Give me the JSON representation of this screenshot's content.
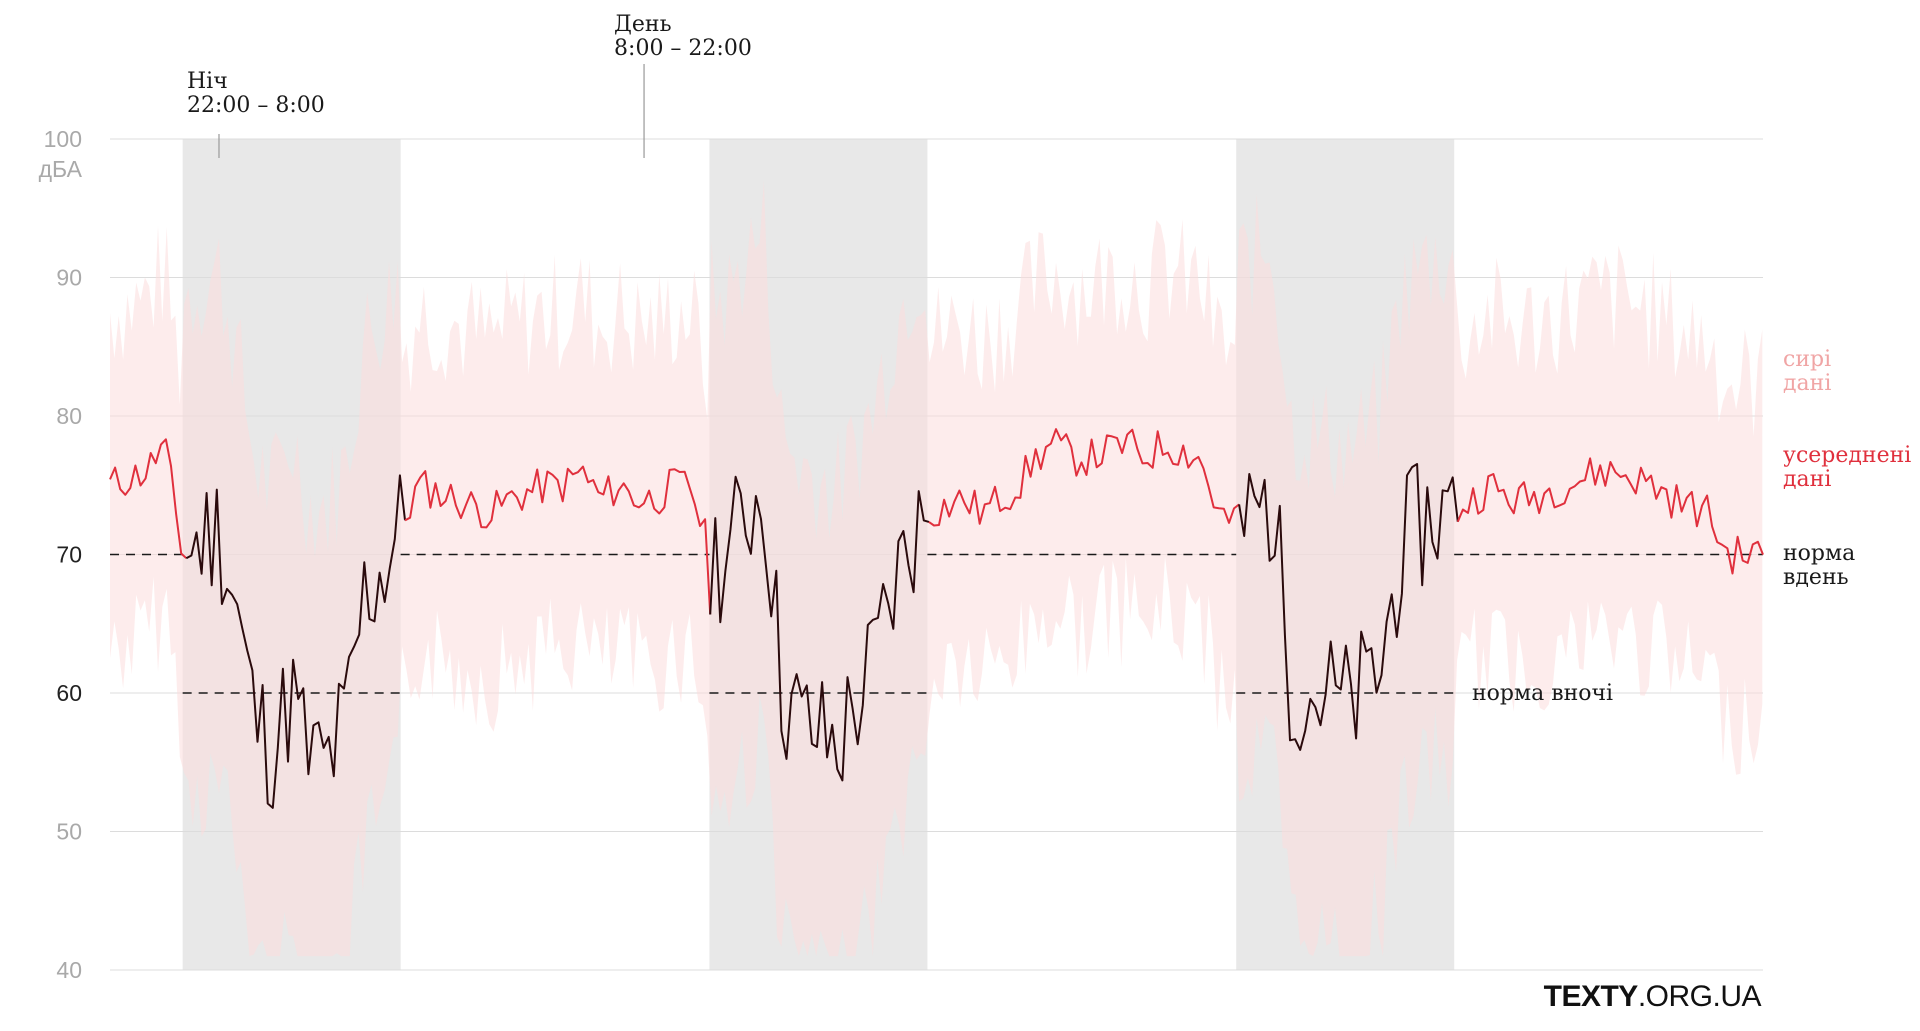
{
  "chart_data": {
    "type": "line",
    "title": "",
    "ylabel": "дБА",
    "ylim": [
      40,
      100
    ],
    "yticks": [
      40,
      50,
      60,
      70,
      80,
      90,
      100
    ],
    "grid": true,
    "colors": {
      "night_band": "#e8e8e8",
      "raw": "#fbdcdc",
      "raw_label": "#f0a5a5",
      "average": "#e0303d",
      "average_night": "#2a0a0c",
      "norm": "#1a1a1a"
    },
    "night_periods": [
      [
        10,
        70
      ],
      [
        155,
        215
      ],
      [
        300,
        360
      ]
    ],
    "annotations": {
      "night": {
        "title": "Ніч",
        "time": "22:00 – 8:00",
        "x": 20
      },
      "day": {
        "title": "День",
        "time": "8:00 – 22:00",
        "x": 137
      }
    },
    "norms": {
      "day": {
        "value": 70,
        "label_line1": "норма",
        "label_line2": "вдень"
      },
      "night": {
        "value": 60,
        "label": "норма вночі"
      }
    },
    "legend": {
      "raw_line1": "сирі",
      "raw_line2": "дані",
      "avg_line1": "усереднені",
      "avg_line2": "дані"
    },
    "x_range": [
      -10,
      445
    ],
    "series": [
      {
        "name": "усереднені дані",
        "x": [
          -10,
          -5,
          0,
          5,
          10,
          15,
          20,
          25,
          30,
          35,
          40,
          45,
          50,
          55,
          60,
          65,
          70,
          75,
          80,
          85,
          90,
          95,
          100,
          105,
          110,
          115,
          120,
          125,
          130,
          135,
          140,
          145,
          150,
          155,
          160,
          165,
          170,
          175,
          180,
          185,
          190,
          195,
          200,
          205,
          210,
          215,
          220,
          225,
          230,
          235,
          240,
          245,
          250,
          255,
          260,
          265,
          270,
          275,
          280,
          285,
          290,
          295,
          300,
          305,
          310,
          315,
          320,
          325,
          330,
          335,
          340,
          345,
          350,
          355,
          360,
          365,
          370,
          375,
          380,
          385,
          390,
          395,
          400,
          405,
          410,
          415,
          420,
          425,
          430,
          435,
          440,
          445
        ],
        "values": [
          75,
          75.5,
          76,
          78,
          70,
          71,
          72,
          66,
          58,
          56,
          60,
          55,
          55,
          58,
          67,
          69,
          72,
          75,
          74.5,
          74,
          73.5,
          73,
          74,
          74.5,
          75,
          75,
          76,
          74,
          75,
          74,
          74,
          75,
          75,
          70,
          70,
          73,
          75,
          60,
          58,
          57,
          56,
          59,
          62,
          67,
          71,
          73,
          73.5,
          74,
          73,
          74,
          75,
          77,
          78,
          77,
          77,
          77.5,
          78,
          77,
          78,
          77.5,
          77,
          73,
          72,
          73,
          74,
          61,
          60,
          60,
          59,
          60,
          62,
          70,
          72,
          73,
          73,
          74,
          75,
          74,
          74,
          74.5,
          75,
          75.5,
          76,
          76,
          75.5,
          75,
          74,
          73.5,
          73,
          70,
          70,
          70
        ]
      }
    ]
  },
  "branding": {
    "bold": "TEXTY",
    "rest": ".ORG.UA"
  }
}
